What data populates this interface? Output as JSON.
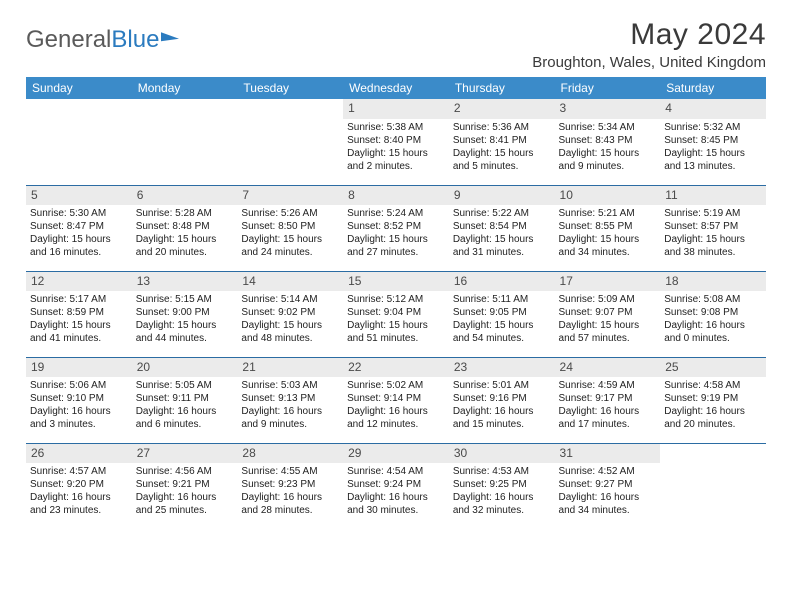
{
  "brand": {
    "part1": "General",
    "part2": "Blue"
  },
  "title": "May 2024",
  "location": "Broughton, Wales, United Kingdom",
  "colors": {
    "header_bg": "#3b8bc9",
    "header_text": "#ffffff",
    "daynum_bg": "#ebebeb",
    "row_border": "#2b6ca3",
    "brand_gray": "#5a5a5a",
    "brand_blue": "#2b7bbf"
  },
  "fonts": {
    "title_size": 30,
    "location_size": 15,
    "header_cell_size": 12,
    "body_cell_size": 10
  },
  "weekdays": [
    "Sunday",
    "Monday",
    "Tuesday",
    "Wednesday",
    "Thursday",
    "Friday",
    "Saturday"
  ],
  "weeks": [
    [
      {
        "empty": true
      },
      {
        "empty": true
      },
      {
        "empty": true
      },
      {
        "day": "1",
        "sunrise": "Sunrise: 5:38 AM",
        "sunset": "Sunset: 8:40 PM",
        "daylight1": "Daylight: 15 hours",
        "daylight2": "and 2 minutes."
      },
      {
        "day": "2",
        "sunrise": "Sunrise: 5:36 AM",
        "sunset": "Sunset: 8:41 PM",
        "daylight1": "Daylight: 15 hours",
        "daylight2": "and 5 minutes."
      },
      {
        "day": "3",
        "sunrise": "Sunrise: 5:34 AM",
        "sunset": "Sunset: 8:43 PM",
        "daylight1": "Daylight: 15 hours",
        "daylight2": "and 9 minutes."
      },
      {
        "day": "4",
        "sunrise": "Sunrise: 5:32 AM",
        "sunset": "Sunset: 8:45 PM",
        "daylight1": "Daylight: 15 hours",
        "daylight2": "and 13 minutes."
      }
    ],
    [
      {
        "day": "5",
        "sunrise": "Sunrise: 5:30 AM",
        "sunset": "Sunset: 8:47 PM",
        "daylight1": "Daylight: 15 hours",
        "daylight2": "and 16 minutes."
      },
      {
        "day": "6",
        "sunrise": "Sunrise: 5:28 AM",
        "sunset": "Sunset: 8:48 PM",
        "daylight1": "Daylight: 15 hours",
        "daylight2": "and 20 minutes."
      },
      {
        "day": "7",
        "sunrise": "Sunrise: 5:26 AM",
        "sunset": "Sunset: 8:50 PM",
        "daylight1": "Daylight: 15 hours",
        "daylight2": "and 24 minutes."
      },
      {
        "day": "8",
        "sunrise": "Sunrise: 5:24 AM",
        "sunset": "Sunset: 8:52 PM",
        "daylight1": "Daylight: 15 hours",
        "daylight2": "and 27 minutes."
      },
      {
        "day": "9",
        "sunrise": "Sunrise: 5:22 AM",
        "sunset": "Sunset: 8:54 PM",
        "daylight1": "Daylight: 15 hours",
        "daylight2": "and 31 minutes."
      },
      {
        "day": "10",
        "sunrise": "Sunrise: 5:21 AM",
        "sunset": "Sunset: 8:55 PM",
        "daylight1": "Daylight: 15 hours",
        "daylight2": "and 34 minutes."
      },
      {
        "day": "11",
        "sunrise": "Sunrise: 5:19 AM",
        "sunset": "Sunset: 8:57 PM",
        "daylight1": "Daylight: 15 hours",
        "daylight2": "and 38 minutes."
      }
    ],
    [
      {
        "day": "12",
        "sunrise": "Sunrise: 5:17 AM",
        "sunset": "Sunset: 8:59 PM",
        "daylight1": "Daylight: 15 hours",
        "daylight2": "and 41 minutes."
      },
      {
        "day": "13",
        "sunrise": "Sunrise: 5:15 AM",
        "sunset": "Sunset: 9:00 PM",
        "daylight1": "Daylight: 15 hours",
        "daylight2": "and 44 minutes."
      },
      {
        "day": "14",
        "sunrise": "Sunrise: 5:14 AM",
        "sunset": "Sunset: 9:02 PM",
        "daylight1": "Daylight: 15 hours",
        "daylight2": "and 48 minutes."
      },
      {
        "day": "15",
        "sunrise": "Sunrise: 5:12 AM",
        "sunset": "Sunset: 9:04 PM",
        "daylight1": "Daylight: 15 hours",
        "daylight2": "and 51 minutes."
      },
      {
        "day": "16",
        "sunrise": "Sunrise: 5:11 AM",
        "sunset": "Sunset: 9:05 PM",
        "daylight1": "Daylight: 15 hours",
        "daylight2": "and 54 minutes."
      },
      {
        "day": "17",
        "sunrise": "Sunrise: 5:09 AM",
        "sunset": "Sunset: 9:07 PM",
        "daylight1": "Daylight: 15 hours",
        "daylight2": "and 57 minutes."
      },
      {
        "day": "18",
        "sunrise": "Sunrise: 5:08 AM",
        "sunset": "Sunset: 9:08 PM",
        "daylight1": "Daylight: 16 hours",
        "daylight2": "and 0 minutes."
      }
    ],
    [
      {
        "day": "19",
        "sunrise": "Sunrise: 5:06 AM",
        "sunset": "Sunset: 9:10 PM",
        "daylight1": "Daylight: 16 hours",
        "daylight2": "and 3 minutes."
      },
      {
        "day": "20",
        "sunrise": "Sunrise: 5:05 AM",
        "sunset": "Sunset: 9:11 PM",
        "daylight1": "Daylight: 16 hours",
        "daylight2": "and 6 minutes."
      },
      {
        "day": "21",
        "sunrise": "Sunrise: 5:03 AM",
        "sunset": "Sunset: 9:13 PM",
        "daylight1": "Daylight: 16 hours",
        "daylight2": "and 9 minutes."
      },
      {
        "day": "22",
        "sunrise": "Sunrise: 5:02 AM",
        "sunset": "Sunset: 9:14 PM",
        "daylight1": "Daylight: 16 hours",
        "daylight2": "and 12 minutes."
      },
      {
        "day": "23",
        "sunrise": "Sunrise: 5:01 AM",
        "sunset": "Sunset: 9:16 PM",
        "daylight1": "Daylight: 16 hours",
        "daylight2": "and 15 minutes."
      },
      {
        "day": "24",
        "sunrise": "Sunrise: 4:59 AM",
        "sunset": "Sunset: 9:17 PM",
        "daylight1": "Daylight: 16 hours",
        "daylight2": "and 17 minutes."
      },
      {
        "day": "25",
        "sunrise": "Sunrise: 4:58 AM",
        "sunset": "Sunset: 9:19 PM",
        "daylight1": "Daylight: 16 hours",
        "daylight2": "and 20 minutes."
      }
    ],
    [
      {
        "day": "26",
        "sunrise": "Sunrise: 4:57 AM",
        "sunset": "Sunset: 9:20 PM",
        "daylight1": "Daylight: 16 hours",
        "daylight2": "and 23 minutes."
      },
      {
        "day": "27",
        "sunrise": "Sunrise: 4:56 AM",
        "sunset": "Sunset: 9:21 PM",
        "daylight1": "Daylight: 16 hours",
        "daylight2": "and 25 minutes."
      },
      {
        "day": "28",
        "sunrise": "Sunrise: 4:55 AM",
        "sunset": "Sunset: 9:23 PM",
        "daylight1": "Daylight: 16 hours",
        "daylight2": "and 28 minutes."
      },
      {
        "day": "29",
        "sunrise": "Sunrise: 4:54 AM",
        "sunset": "Sunset: 9:24 PM",
        "daylight1": "Daylight: 16 hours",
        "daylight2": "and 30 minutes."
      },
      {
        "day": "30",
        "sunrise": "Sunrise: 4:53 AM",
        "sunset": "Sunset: 9:25 PM",
        "daylight1": "Daylight: 16 hours",
        "daylight2": "and 32 minutes."
      },
      {
        "day": "31",
        "sunrise": "Sunrise: 4:52 AM",
        "sunset": "Sunset: 9:27 PM",
        "daylight1": "Daylight: 16 hours",
        "daylight2": "and 34 minutes."
      },
      {
        "empty": true
      }
    ]
  ]
}
